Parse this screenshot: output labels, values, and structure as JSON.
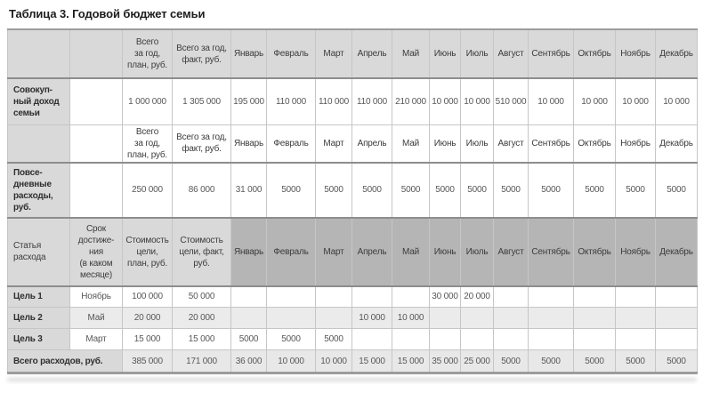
{
  "title": "Таблица 3. Годовой бюджет семьи",
  "months": [
    "Январь",
    "Февраль",
    "Март",
    "Апрель",
    "Май",
    "Июнь",
    "Июль",
    "Август",
    "Сентябрь",
    "Октябрь",
    "Ноябрь",
    "Декабрь"
  ],
  "colors": {
    "title_color": "#1d1d1f",
    "header_bg": "#d9d9d9",
    "header_dark_bg": "#b5b5b5",
    "label_col_bg": "#d9d9d9",
    "goal_alt_bg": "#ebebeb",
    "totals_bg": "#e8e8e8",
    "border_light": "#c6c6c6",
    "border_dark": "#8d8d8d",
    "border_heavy": "#9c9c9c",
    "label_color": "#2f2f31",
    "value_color": "#58585a",
    "header_text": "#3c3c3e"
  },
  "table": {
    "rows": [
      {
        "kind": "header-top",
        "cells": [
          {
            "t": ""
          },
          {
            "t": ""
          },
          {
            "t": "Всего\nза год,\nплан, руб."
          },
          {
            "t": "Всего за год,\nфакт, руб."
          },
          {
            "t": "Январь"
          },
          {
            "t": "Февраль"
          },
          {
            "t": "Март"
          },
          {
            "t": "Апрель"
          },
          {
            "t": "Май"
          },
          {
            "t": "Июнь"
          },
          {
            "t": "Июль"
          },
          {
            "t": "Август"
          },
          {
            "t": "Сентябрь"
          },
          {
            "t": "Октябрь"
          },
          {
            "t": "Ноябрь"
          },
          {
            "t": "Декабрь"
          }
        ]
      },
      {
        "kind": "income",
        "cells": [
          {
            "t": "Совокуп-\nный доход\nсемьи"
          },
          {
            "t": ""
          },
          {
            "t": "1 000 000"
          },
          {
            "t": "1 305 000"
          },
          {
            "t": "195 000"
          },
          {
            "t": "110 000"
          },
          {
            "t": "110 000"
          },
          {
            "t": "110 000"
          },
          {
            "t": "210 000"
          },
          {
            "t": "10 000"
          },
          {
            "t": "10 000"
          },
          {
            "t": "510 000"
          },
          {
            "t": "10 000"
          },
          {
            "t": "10 000"
          },
          {
            "t": "10 000"
          },
          {
            "t": "10 000"
          }
        ]
      },
      {
        "kind": "header-white",
        "cells": [
          {
            "t": ""
          },
          {
            "t": ""
          },
          {
            "t": "Всего\nза год,\nплан, руб."
          },
          {
            "t": "Всего за год,\nфакт, руб."
          },
          {
            "t": "Январь"
          },
          {
            "t": "Февраль"
          },
          {
            "t": "Март"
          },
          {
            "t": "Апрель"
          },
          {
            "t": "Май"
          },
          {
            "t": "Июнь"
          },
          {
            "t": "Июль"
          },
          {
            "t": "Август"
          },
          {
            "t": "Сентябрь"
          },
          {
            "t": "Октябрь"
          },
          {
            "t": "Ноябрь"
          },
          {
            "t": "Декабрь"
          }
        ]
      },
      {
        "kind": "daily",
        "cells": [
          {
            "t": "Повсе-\nдневные\nрасходы,\nруб."
          },
          {
            "t": ""
          },
          {
            "t": "250 000"
          },
          {
            "t": "86 000"
          },
          {
            "t": "31 000"
          },
          {
            "t": "5000"
          },
          {
            "t": "5000"
          },
          {
            "t": "5000"
          },
          {
            "t": "5000"
          },
          {
            "t": "5000"
          },
          {
            "t": "5000"
          },
          {
            "t": "5000"
          },
          {
            "t": "5000"
          },
          {
            "t": "5000"
          },
          {
            "t": "5000"
          },
          {
            "t": "5000"
          }
        ]
      },
      {
        "kind": "header-mixed",
        "cells": [
          {
            "t": "Статья\nрасхода"
          },
          {
            "t": "Срок\nдостиже-\nния\n(в каком\nмесяце)"
          },
          {
            "t": "Стоимость\nцели,\nплан, руб."
          },
          {
            "t": "Стоимость\nцели, факт,\nруб."
          },
          {
            "t": "Январь"
          },
          {
            "t": "Февраль"
          },
          {
            "t": "Март"
          },
          {
            "t": "Апрель"
          },
          {
            "t": "Май"
          },
          {
            "t": "Июнь"
          },
          {
            "t": "Июль"
          },
          {
            "t": "Август"
          },
          {
            "t": "Сентябрь"
          },
          {
            "t": "Октябрь"
          },
          {
            "t": "Ноябрь"
          },
          {
            "t": "Декабрь"
          }
        ]
      },
      {
        "kind": "goal",
        "cells": [
          {
            "t": "Цель 1"
          },
          {
            "t": "Ноябрь"
          },
          {
            "t": "100 000"
          },
          {
            "t": "50 000"
          },
          {
            "t": ""
          },
          {
            "t": ""
          },
          {
            "t": ""
          },
          {
            "t": ""
          },
          {
            "t": ""
          },
          {
            "t": "30 000"
          },
          {
            "t": "20 000"
          },
          {
            "t": ""
          },
          {
            "t": ""
          },
          {
            "t": ""
          },
          {
            "t": ""
          },
          {
            "t": ""
          }
        ]
      },
      {
        "kind": "goal-alt",
        "cells": [
          {
            "t": "Цель 2"
          },
          {
            "t": "Май"
          },
          {
            "t": "20 000"
          },
          {
            "t": "20 000"
          },
          {
            "t": ""
          },
          {
            "t": ""
          },
          {
            "t": ""
          },
          {
            "t": "10 000"
          },
          {
            "t": "10 000"
          },
          {
            "t": ""
          },
          {
            "t": ""
          },
          {
            "t": ""
          },
          {
            "t": ""
          },
          {
            "t": ""
          },
          {
            "t": ""
          },
          {
            "t": ""
          }
        ]
      },
      {
        "kind": "goal",
        "cells": [
          {
            "t": "Цель 3"
          },
          {
            "t": "Март"
          },
          {
            "t": "15 000"
          },
          {
            "t": "15 000"
          },
          {
            "t": "5000"
          },
          {
            "t": "5000"
          },
          {
            "t": "5000"
          },
          {
            "t": ""
          },
          {
            "t": ""
          },
          {
            "t": ""
          },
          {
            "t": ""
          },
          {
            "t": ""
          },
          {
            "t": ""
          },
          {
            "t": ""
          },
          {
            "t": ""
          },
          {
            "t": ""
          }
        ]
      },
      {
        "kind": "totals",
        "cells": [
          {
            "t": "Всего расходов, руб.",
            "span": 2
          },
          {
            "t": "385 000"
          },
          {
            "t": "171 000"
          },
          {
            "t": "36 000"
          },
          {
            "t": "10 000"
          },
          {
            "t": "10 000"
          },
          {
            "t": "15 000"
          },
          {
            "t": "15 000"
          },
          {
            "t": "35 000"
          },
          {
            "t": "25 000"
          },
          {
            "t": "5000"
          },
          {
            "t": "5000"
          },
          {
            "t": "5000"
          },
          {
            "t": "5000"
          },
          {
            "t": "5000"
          }
        ]
      }
    ]
  }
}
